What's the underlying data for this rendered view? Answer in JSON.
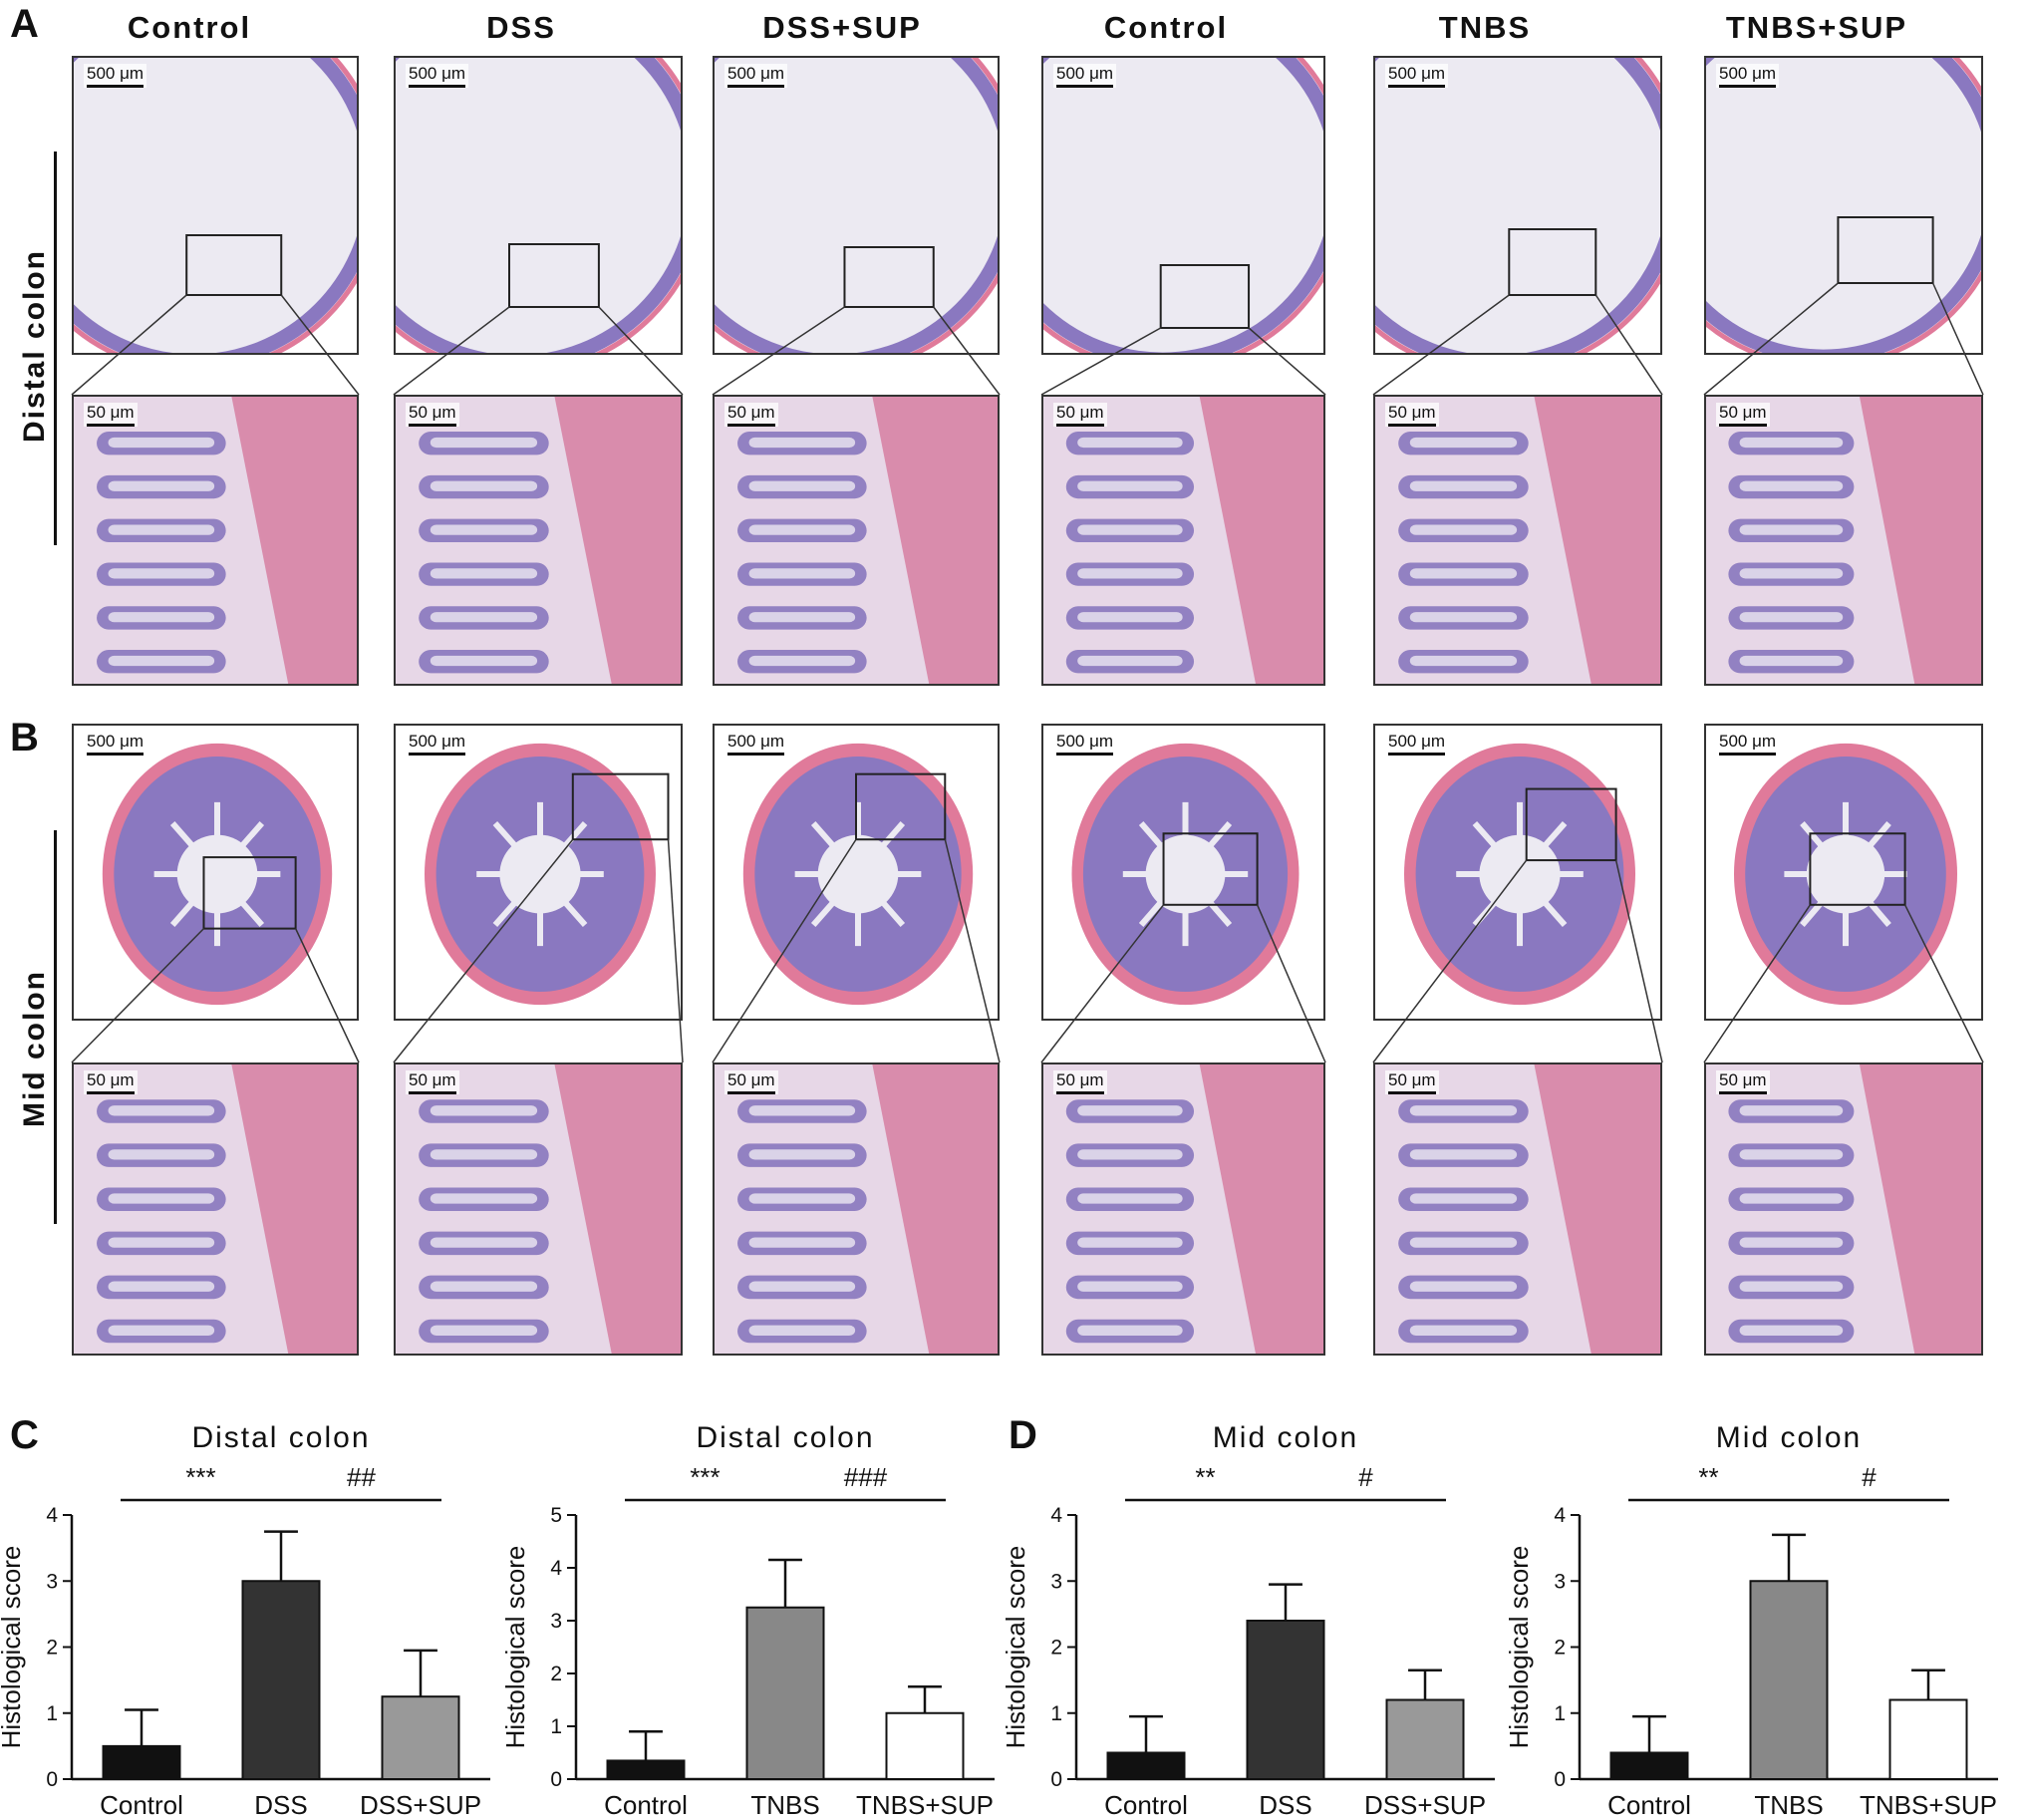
{
  "panels": {
    "a": "A",
    "b": "B",
    "c": "C",
    "d": "D"
  },
  "columns": [
    "Control",
    "DSS",
    "DSS+SUP",
    "Control",
    "TNBS",
    "TNBS+SUP"
  ],
  "rows": {
    "distal": "Distal colon",
    "mid": "Mid colon"
  },
  "scale_bars": {
    "overview": "500 μm",
    "zoom": "50 μm"
  },
  "stain_colors": {
    "mucosa": "#8a78c0",
    "muscle": "#e07a9a",
    "lumen": "#eceaf2",
    "nuclei": "#3d2a8a"
  },
  "chart_data": [
    {
      "type": "bar",
      "title": "Distal colon",
      "ylabel": "Histological score",
      "categories": [
        "Control",
        "DSS",
        "DSS+SUP"
      ],
      "values": [
        0.5,
        3.0,
        1.25
      ],
      "errors": [
        0.55,
        0.75,
        0.7
      ],
      "bar_colors": [
        "#111111",
        "#333333",
        "#999999"
      ],
      "ylim": [
        0,
        4
      ],
      "yticks": [
        0,
        1,
        2,
        3,
        4
      ],
      "significance": [
        {
          "from": 0,
          "to": 1,
          "label": "***"
        },
        {
          "from": 1,
          "to": 2,
          "label": "##"
        }
      ]
    },
    {
      "type": "bar",
      "title": "Distal colon",
      "ylabel": "Histological score",
      "categories": [
        "Control",
        "TNBS",
        "TNBS+SUP"
      ],
      "values": [
        0.35,
        3.25,
        1.25
      ],
      "errors": [
        0.55,
        0.9,
        0.5
      ],
      "bar_colors": [
        "#111111",
        "#888888",
        "#ffffff"
      ],
      "ylim": [
        0,
        5
      ],
      "yticks": [
        0,
        1,
        2,
        3,
        4,
        5
      ],
      "significance": [
        {
          "from": 0,
          "to": 1,
          "label": "***"
        },
        {
          "from": 1,
          "to": 2,
          "label": "###"
        }
      ]
    },
    {
      "type": "bar",
      "title": "Mid colon",
      "ylabel": "Histological score",
      "categories": [
        "Control",
        "DSS",
        "DSS+SUP"
      ],
      "values": [
        0.4,
        2.4,
        1.2
      ],
      "errors": [
        0.55,
        0.55,
        0.45
      ],
      "bar_colors": [
        "#111111",
        "#333333",
        "#999999"
      ],
      "ylim": [
        0,
        4
      ],
      "yticks": [
        0,
        1,
        2,
        3,
        4
      ],
      "significance": [
        {
          "from": 0,
          "to": 1,
          "label": "**"
        },
        {
          "from": 1,
          "to": 2,
          "label": "#"
        }
      ]
    },
    {
      "type": "bar",
      "title": "Mid colon",
      "ylabel": "Histological score",
      "categories": [
        "Control",
        "TNBS",
        "TNBS+SUP"
      ],
      "values": [
        0.4,
        3.0,
        1.2
      ],
      "errors": [
        0.55,
        0.7,
        0.45
      ],
      "bar_colors": [
        "#111111",
        "#888888",
        "#ffffff"
      ],
      "ylim": [
        0,
        4
      ],
      "yticks": [
        0,
        1,
        2,
        3,
        4
      ],
      "significance": [
        {
          "from": 0,
          "to": 1,
          "label": "**"
        },
        {
          "from": 1,
          "to": 2,
          "label": "#"
        }
      ]
    }
  ]
}
